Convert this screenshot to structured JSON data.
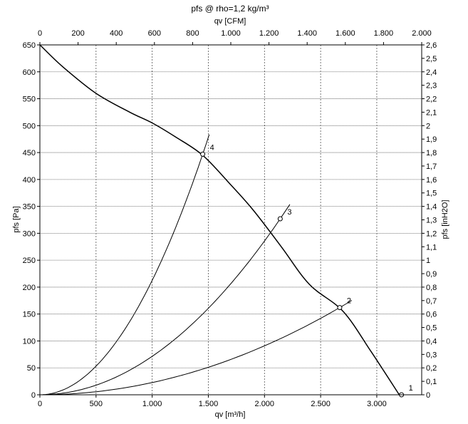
{
  "chart_data": {
    "type": "line",
    "title": "pfs @ rho=1,2 kg/m³",
    "x_bottom": {
      "label": "qv [m³/h]",
      "range": [
        0,
        3400
      ],
      "ticks": [
        0,
        500,
        1000,
        1500,
        2000,
        2500,
        3000
      ],
      "tick_labels": [
        "0",
        "500",
        "1.000",
        "1.500",
        "2.000",
        "2.500",
        "3.000"
      ]
    },
    "x_top": {
      "label": "qv [CFM]",
      "range": [
        0,
        2000
      ],
      "ticks": [
        0,
        200,
        400,
        600,
        800,
        1000,
        1200,
        1400,
        1600,
        1800,
        2000
      ],
      "tick_labels": [
        "0",
        "200",
        "400",
        "600",
        "800",
        "1.000",
        "1.200",
        "1.400",
        "1.600",
        "1.800",
        "2.000"
      ]
    },
    "y_left": {
      "label": "pfs [Pa]",
      "range": [
        0,
        650
      ],
      "ticks": [
        0,
        50,
        100,
        150,
        200,
        250,
        300,
        350,
        400,
        450,
        500,
        550,
        600,
        650
      ],
      "tick_labels": [
        "0",
        "50",
        "100",
        "150",
        "200",
        "250",
        "300",
        "350",
        "400",
        "450",
        "500",
        "550",
        "600",
        "650"
      ]
    },
    "y_right": {
      "label": "pfs [inH2O]",
      "range": [
        0,
        2.6
      ],
      "ticks": [
        0,
        0.1,
        0.2,
        0.3,
        0.4,
        0.5,
        0.6,
        0.7,
        0.8,
        0.9,
        1.0,
        1.1,
        1.2,
        1.3,
        1.4,
        1.5,
        1.6,
        1.7,
        1.8,
        1.9,
        2.0,
        2.1,
        2.2,
        2.3,
        2.4,
        2.5,
        2.6
      ],
      "tick_labels": [
        "0",
        "0,1",
        "0,2",
        "0,3",
        "0,4",
        "0,5",
        "0,6",
        "0,7",
        "0,8",
        "0,9",
        "1",
        "1,1",
        "1,2",
        "1,3",
        "1,4",
        "1,5",
        "1,6",
        "1,7",
        "1,8",
        "1,9",
        "2",
        "2,1",
        "2,2",
        "2,3",
        "2,4",
        "2,5",
        "2,6"
      ]
    },
    "grid": true,
    "fan_curve": {
      "x": [
        0,
        200,
        500,
        800,
        1000,
        1200,
        1450,
        1700,
        1900,
        2150,
        2400,
        2700,
        2950,
        3200
      ],
      "y": [
        650,
        610,
        560,
        525,
        505,
        480,
        445,
        390,
        343,
        275,
        205,
        155,
        80,
        0
      ]
    },
    "operating_points": [
      {
        "label": "1",
        "x": 3220,
        "y": 0
      },
      {
        "label": "2",
        "x": 2670,
        "y": 162
      },
      {
        "label": "3",
        "x": 2140,
        "y": 327
      },
      {
        "label": "4",
        "x": 1450,
        "y": 447
      }
    ]
  }
}
